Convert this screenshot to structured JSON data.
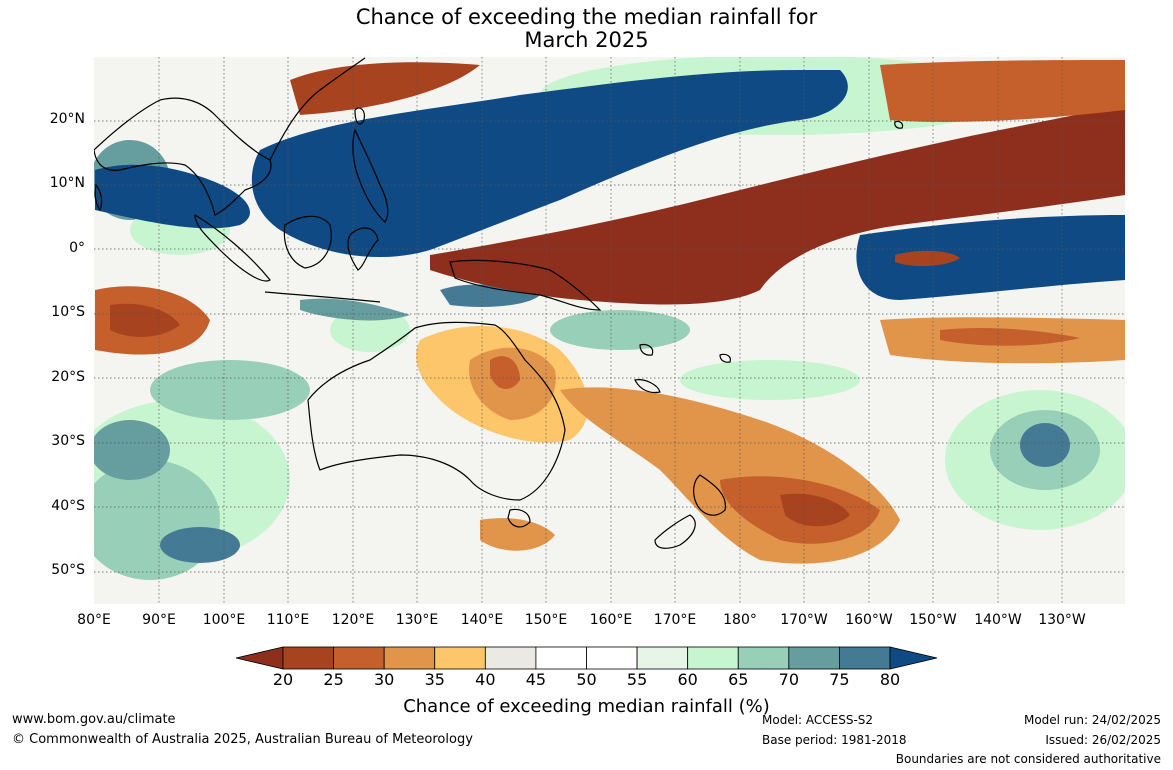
{
  "title_line1": "Chance of exceeding the median rainfall for",
  "title_line2": "March 2025",
  "lat_labels": [
    "20°N",
    "10°N",
    "0°",
    "10°S",
    "20°S",
    "30°S",
    "40°S",
    "50°S"
  ],
  "lon_labels": [
    "80°E",
    "90°E",
    "100°E",
    "110°E",
    "120°E",
    "130°E",
    "140°E",
    "150°E",
    "160°E",
    "170°E",
    "180°",
    "170°W",
    "160°W",
    "150°W",
    "140°W",
    "130°W"
  ],
  "colorbar": {
    "ticks": [
      "20",
      "25",
      "30",
      "35",
      "40",
      "45",
      "50",
      "55",
      "60",
      "65",
      "70",
      "75",
      "80"
    ],
    "colors": [
      "#8e2f1d",
      "#a8431f",
      "#c5602c",
      "#e0954a",
      "#fdc66a",
      "#ebe9e4",
      "#ffffff",
      "#ffffff",
      "#e6f5e6",
      "#c6f5cf",
      "#98cfb8",
      "#669e9f",
      "#447a94",
      "#0f4a84"
    ],
    "title": "Chance of exceeding median rainfall (%)"
  },
  "footer": {
    "website": "www.bom.gov.au/climate",
    "copyright": "© Commonwealth of Australia 2025, Australian Bureau of Meteorology",
    "model": "Model: ACCESS-S2",
    "base_period": "Base period: 1981-2018",
    "model_run": "Model run: 24/02/2025",
    "issued": "Issued: 26/02/2025",
    "disclaimer": "Boundaries are not considered authoritative"
  }
}
